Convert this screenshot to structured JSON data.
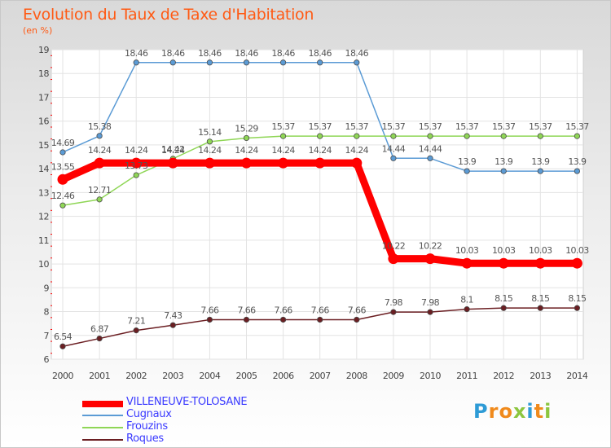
{
  "header": {
    "title": "Evolution du Taux de Taxe d'Habitation",
    "subtitle": "(en %)"
  },
  "chart_data": {
    "type": "line",
    "x": [
      2000,
      2001,
      2002,
      2003,
      2004,
      2005,
      2006,
      2007,
      2008,
      2009,
      2010,
      2011,
      2012,
      2013,
      2014
    ],
    "ylim": [
      6,
      19
    ],
    "yticks": [
      6,
      7,
      8,
      9,
      10,
      11,
      12,
      13,
      14,
      15,
      16,
      17,
      18,
      19
    ],
    "grid": true,
    "legend_position": "bottom-left",
    "series": [
      {
        "name": "Cugnaux",
        "color": "#5b9bd5",
        "values": [
          14.69,
          15.38,
          18.46,
          18.46,
          18.46,
          18.46,
          18.46,
          18.46,
          18.46,
          14.44,
          14.44,
          13.9,
          13.9,
          13.9,
          13.9
        ],
        "labels": [
          "14.69",
          "15.38",
          "18.46",
          "18.46",
          "18.46",
          "18.46",
          "18.46",
          "18.46",
          "18.46",
          "14.44",
          "14.44",
          "13.9",
          "13.9",
          "13.9",
          "13.9"
        ]
      },
      {
        "name": "Frouzins",
        "color": "#8fd656",
        "values": [
          12.46,
          12.71,
          13.73,
          14.42,
          15.14,
          15.29,
          15.37,
          15.37,
          15.37,
          15.37,
          15.37,
          15.37,
          15.37,
          15.37,
          15.37
        ],
        "labels": [
          "12.46",
          "12.71",
          "13.73",
          "14.42",
          "15.14",
          "15.29",
          "15.37",
          "15.37",
          "15.37",
          "15.37",
          "15.37",
          "15.37",
          "15.37",
          "15.37",
          "15.37"
        ]
      },
      {
        "name": "Roques",
        "color": "#6b1e22",
        "values": [
          6.54,
          6.87,
          7.21,
          7.43,
          7.66,
          7.66,
          7.66,
          7.66,
          7.66,
          7.98,
          7.98,
          8.1,
          8.15,
          8.15,
          8.15
        ],
        "labels": [
          "6.54",
          "6.87",
          "7.21",
          "7.43",
          "7.66",
          "7.66",
          "7.66",
          "7.66",
          "7.66",
          "7.98",
          "7.98",
          "8.1",
          "8.15",
          "8.15",
          "8.15"
        ]
      },
      {
        "name": "VILLENEUVE-TOLOSANE",
        "color": "#ff0000",
        "values": [
          13.55,
          14.24,
          14.24,
          14.24,
          14.24,
          14.24,
          14.24,
          14.24,
          14.24,
          10.22,
          10.22,
          10.03,
          10.03,
          10.03,
          10.03
        ],
        "labels": [
          "13.55",
          "14.24",
          "14.24",
          "14.24",
          "14.24",
          "14.24",
          "14.24",
          "14.24",
          "14.24",
          "10.22",
          "10.22",
          "10.03",
          "10.03",
          "10.03",
          "10.03"
        ]
      }
    ]
  },
  "legend": {
    "items": [
      {
        "name": "VILLENEUVE-TOLOSANE",
        "color": "#ff0000"
      },
      {
        "name": "Cugnaux",
        "color": "#5b9bd5"
      },
      {
        "name": "Frouzins",
        "color": "#8fd656"
      },
      {
        "name": "Roques",
        "color": "#6b1e22"
      }
    ]
  },
  "logo": {
    "letters": [
      "P",
      "r",
      "o",
      "x",
      "i",
      "t",
      "i"
    ],
    "colors": [
      "#2e9bd6",
      "#f08a1c",
      "#f08a1c",
      "#8cc63f",
      "#2e9bd6",
      "#f08a1c",
      "#8cc63f"
    ]
  }
}
